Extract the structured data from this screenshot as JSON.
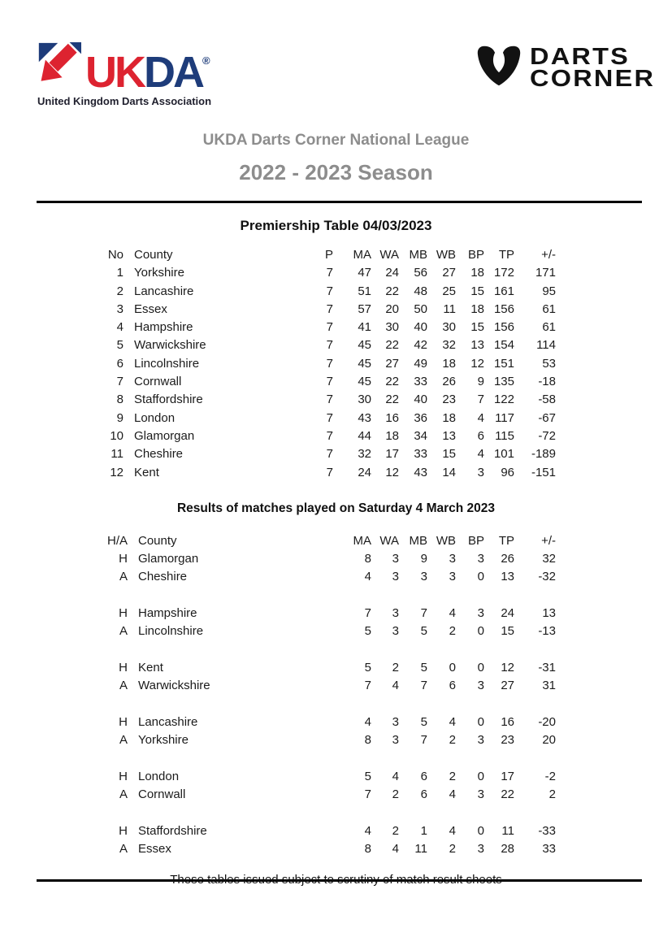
{
  "colors": {
    "brand_red": "#dd2330",
    "brand_navy": "#1e3c7a",
    "heading_gray": "#8d8d8d",
    "text_black": "#1b1b1b"
  },
  "header": {
    "ukda": {
      "wordmark_red": "UK",
      "wordmark_blue": "DA",
      "registered": "®",
      "tagline": "United Kingdom Darts Association"
    },
    "darts_corner": {
      "line1": "DARTS",
      "line2": "CORNER"
    }
  },
  "titles": {
    "league": "UKDA Darts Corner National League",
    "season": "2022 - 2023 Season",
    "premiership": "Premiership Table 04/03/2023",
    "results": "Results of matches played on Saturday 4 March 2023"
  },
  "premiership_table": {
    "headers": [
      "No",
      "County",
      "P",
      "MA",
      "WA",
      "MB",
      "WB",
      "BP",
      "TP",
      "+/-"
    ],
    "rows": [
      [
        "1",
        "Yorkshire",
        "7",
        "47",
        "24",
        "56",
        "27",
        "18",
        "172",
        "171"
      ],
      [
        "2",
        "Lancashire",
        "7",
        "51",
        "22",
        "48",
        "25",
        "15",
        "161",
        "95"
      ],
      [
        "3",
        "Essex",
        "7",
        "57",
        "20",
        "50",
        "11",
        "18",
        "156",
        "61"
      ],
      [
        "4",
        "Hampshire",
        "7",
        "41",
        "30",
        "40",
        "30",
        "15",
        "156",
        "61"
      ],
      [
        "5",
        "Warwickshire",
        "7",
        "45",
        "22",
        "42",
        "32",
        "13",
        "154",
        "114"
      ],
      [
        "6",
        "Lincolnshire",
        "7",
        "45",
        "27",
        "49",
        "18",
        "12",
        "151",
        "53"
      ],
      [
        "7",
        "Cornwall",
        "7",
        "45",
        "22",
        "33",
        "26",
        "9",
        "135",
        "-18"
      ],
      [
        "8",
        "Staffordshire",
        "7",
        "30",
        "22",
        "40",
        "23",
        "7",
        "122",
        "-58"
      ],
      [
        "9",
        "London",
        "7",
        "43",
        "16",
        "36",
        "18",
        "4",
        "117",
        "-67"
      ],
      [
        "10",
        "Glamorgan",
        "7",
        "44",
        "18",
        "34",
        "13",
        "6",
        "115",
        "-72"
      ],
      [
        "11",
        "Cheshire",
        "7",
        "32",
        "17",
        "33",
        "15",
        "4",
        "101",
        "-189"
      ],
      [
        "12",
        "Kent",
        "7",
        "24",
        "12",
        "43",
        "14",
        "3",
        "96",
        "-151"
      ]
    ]
  },
  "results_table": {
    "headers": [
      "H/A",
      "County",
      "MA",
      "WA",
      "MB",
      "WB",
      "BP",
      "TP",
      "+/-"
    ],
    "matches": [
      {
        "home": [
          "H",
          "Glamorgan",
          "8",
          "3",
          "9",
          "3",
          "3",
          "26",
          "32"
        ],
        "away": [
          "A",
          "Cheshire",
          "4",
          "3",
          "3",
          "3",
          "0",
          "13",
          "-32"
        ]
      },
      {
        "home": [
          "H",
          "Hampshire",
          "7",
          "3",
          "7",
          "4",
          "3",
          "24",
          "13"
        ],
        "away": [
          "A",
          "Lincolnshire",
          "5",
          "3",
          "5",
          "2",
          "0",
          "15",
          "-13"
        ]
      },
      {
        "home": [
          "H",
          "Kent",
          "5",
          "2",
          "5",
          "0",
          "0",
          "12",
          "-31"
        ],
        "away": [
          "A",
          "Warwickshire",
          "7",
          "4",
          "7",
          "6",
          "3",
          "27",
          "31"
        ]
      },
      {
        "home": [
          "H",
          "Lancashire",
          "4",
          "3",
          "5",
          "4",
          "0",
          "16",
          "-20"
        ],
        "away": [
          "A",
          "Yorkshire",
          "8",
          "3",
          "7",
          "2",
          "3",
          "23",
          "20"
        ]
      },
      {
        "home": [
          "H",
          "London",
          "5",
          "4",
          "6",
          "2",
          "0",
          "17",
          "-2"
        ],
        "away": [
          "A",
          "Cornwall",
          "7",
          "2",
          "6",
          "4",
          "3",
          "22",
          "2"
        ]
      },
      {
        "home": [
          "H",
          "Staffordshire",
          "4",
          "2",
          "1",
          "4",
          "0",
          "11",
          "-33"
        ],
        "away": [
          "A",
          "Essex",
          "8",
          "4",
          "11",
          "2",
          "3",
          "28",
          "33"
        ]
      }
    ]
  },
  "footer": {
    "note": "These tables issued subject to scrutiny of match result sheets"
  }
}
